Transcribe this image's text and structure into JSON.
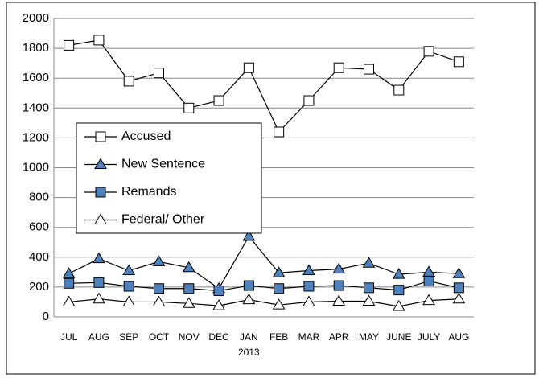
{
  "chart_data": {
    "type": "line",
    "categories": [
      "JUL",
      "AUG",
      "SEP",
      "OCT",
      "NOV",
      "DEC",
      "JAN",
      "FEB",
      "MAR",
      "APR",
      "MAY",
      "JUNE",
      "JULY",
      "AUG"
    ],
    "annotation": "2013",
    "series": [
      {
        "name": "Accused",
        "color": "#ffffff",
        "marker": "square",
        "values": [
          1820,
          1855,
          1580,
          1635,
          1400,
          1450,
          1670,
          1240,
          1450,
          1670,
          1660,
          1520,
          1780,
          1710
        ]
      },
      {
        "name": "New Sentence",
        "color": "#4f81bd",
        "marker": "triangle",
        "values": [
          290,
          390,
          310,
          370,
          330,
          190,
          540,
          295,
          310,
          320,
          360,
          285,
          300,
          290
        ]
      },
      {
        "name": "Remands",
        "color": "#4f81bd",
        "marker": "square",
        "values": [
          225,
          230,
          205,
          190,
          190,
          175,
          210,
          190,
          205,
          210,
          195,
          180,
          240,
          195
        ]
      },
      {
        "name": "Federal/ Other",
        "color": "#ffffff",
        "marker": "triangle",
        "values": [
          100,
          120,
          100,
          100,
          90,
          75,
          115,
          80,
          100,
          105,
          105,
          70,
          110,
          120
        ]
      }
    ],
    "ylim": [
      0,
      2000
    ],
    "yticks": [
      0,
      200,
      400,
      600,
      800,
      1000,
      1200,
      1400,
      1600,
      1800,
      2000
    ],
    "grid": true,
    "legend": "left"
  }
}
